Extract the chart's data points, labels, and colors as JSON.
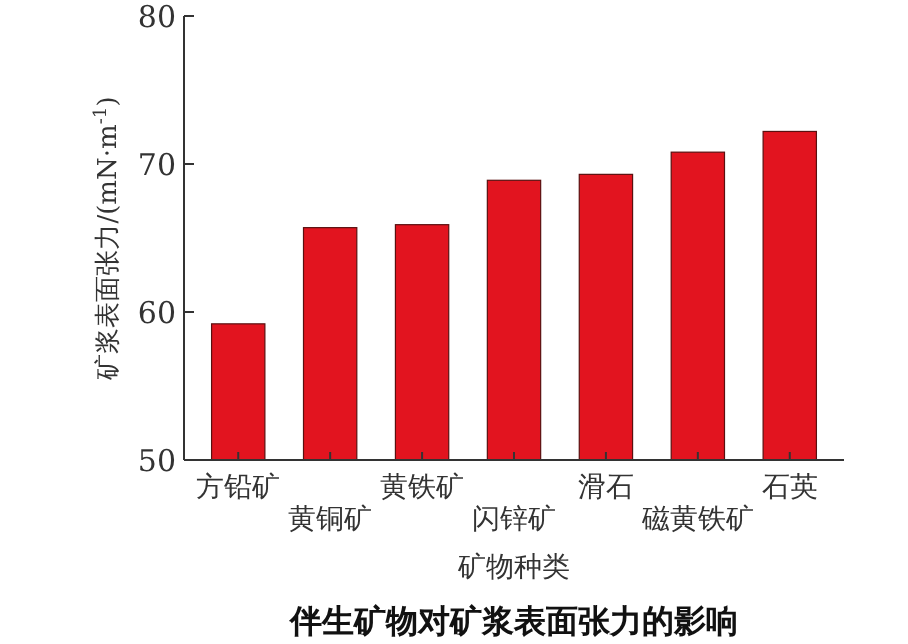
{
  "chart_data": {
    "type": "bar",
    "title": "伴生矿物对矿浆表面张力的影响",
    "xlabel": "矿物种类",
    "ylabel": "矿浆表面张力/(mN·m$^{-1}$)",
    "categories": [
      "方铅矿",
      "黄铜矿",
      "黄铁矿",
      "闪锌矿",
      "滑石",
      "磁黄铁矿",
      "石英"
    ],
    "values": [
      59.2,
      65.7,
      65.9,
      68.9,
      69.3,
      70.8,
      72.2
    ],
    "color": "#e2141f",
    "ylim": [
      50,
      80
    ],
    "yticks": [
      50,
      60,
      70,
      80
    ],
    "grid": false
  }
}
